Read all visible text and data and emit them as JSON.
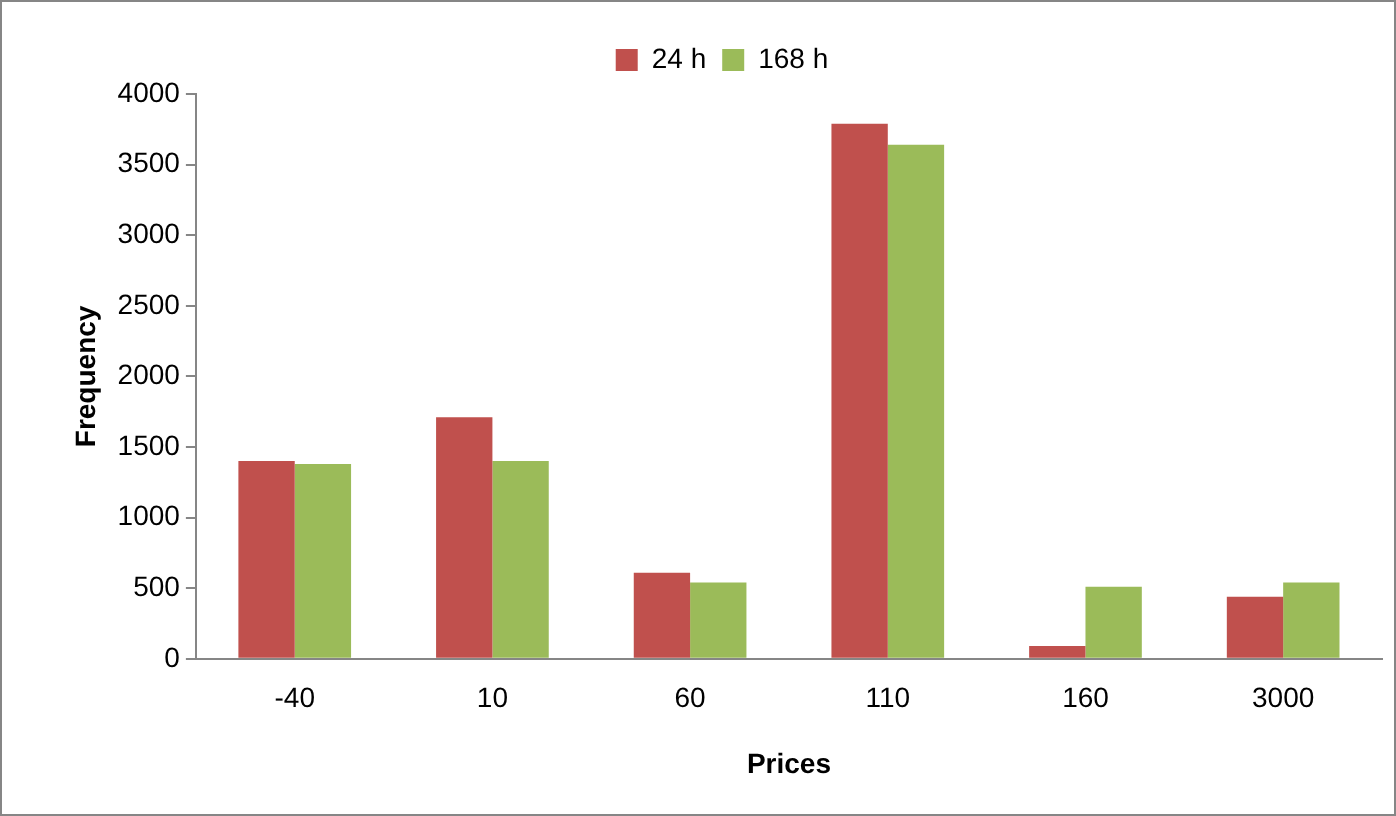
{
  "chart_data": {
    "type": "bar",
    "xlabel": "Prices",
    "ylabel": "Frequency",
    "categories": [
      "-40",
      "10",
      "60",
      "110",
      "160",
      "3000"
    ],
    "series": [
      {
        "name": "24 h",
        "color": "#c0504d",
        "values": [
          1400,
          1710,
          610,
          3790,
          90,
          440
        ]
      },
      {
        "name": "168 h",
        "color": "#9bbb59",
        "values": [
          1380,
          1400,
          540,
          3640,
          510,
          540
        ]
      }
    ],
    "ylim": [
      0,
      4000
    ],
    "yticks": [
      0,
      500,
      1000,
      1500,
      2000,
      2500,
      3000,
      3500,
      4000
    ],
    "grid": false,
    "legend": "top"
  }
}
